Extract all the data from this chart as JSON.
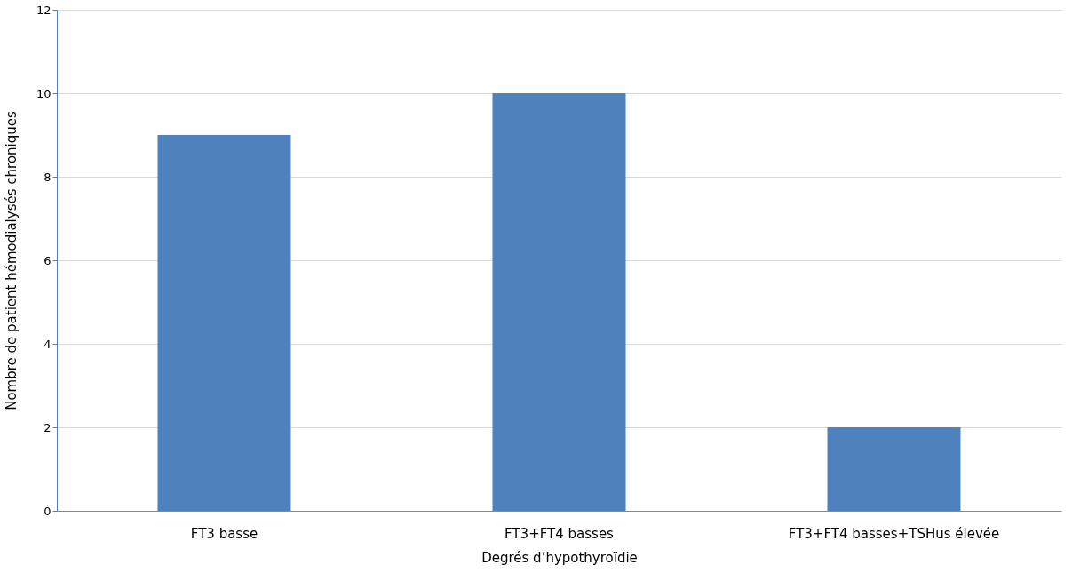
{
  "chart_data": {
    "type": "bar",
    "xlabel": "Degrés d’hypothyroïdie",
    "ylabel": "Nombre de patient hémodialysés chroniques",
    "categories": [
      "FT3 basse",
      "FT3+FT4 basses",
      "FT3+FT4 basses+TSHus élevée"
    ],
    "values": [
      9,
      10,
      2
    ],
    "color": "#4f81bd",
    "ylim": [
      0,
      12
    ],
    "yticks": [
      0,
      2,
      4,
      6,
      8,
      10,
      12
    ],
    "grid": "y"
  }
}
